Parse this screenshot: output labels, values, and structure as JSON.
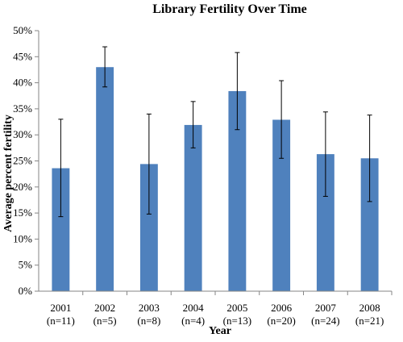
{
  "chart_data": {
    "type": "bar",
    "title": "Library Fertility Over Time",
    "xlabel": "Year",
    "ylabel": "Average percent fertility",
    "ylim": [
      0,
      50
    ],
    "ytick_step": 5,
    "ytick_suffix": "%",
    "grid": false,
    "legend": "none",
    "bar_color": "#4f81bd",
    "categories": [
      "2001",
      "2002",
      "2003",
      "2004",
      "2005",
      "2006",
      "2007",
      "2008"
    ],
    "category_sublabels": [
      "(n=11)",
      "(n=5)",
      "(n=8)",
      "(n=4)",
      "(n=13)",
      "(n=20)",
      "(n=24)",
      "(n=21)"
    ],
    "values": [
      23.6,
      43.0,
      24.4,
      31.9,
      38.4,
      32.9,
      26.3,
      25.5
    ],
    "error_low": [
      14.3,
      39.2,
      14.8,
      27.5,
      31.0,
      25.5,
      18.2,
      17.2
    ],
    "error_high": [
      33.0,
      46.9,
      34.0,
      36.4,
      45.8,
      40.4,
      34.4,
      33.8
    ]
  }
}
